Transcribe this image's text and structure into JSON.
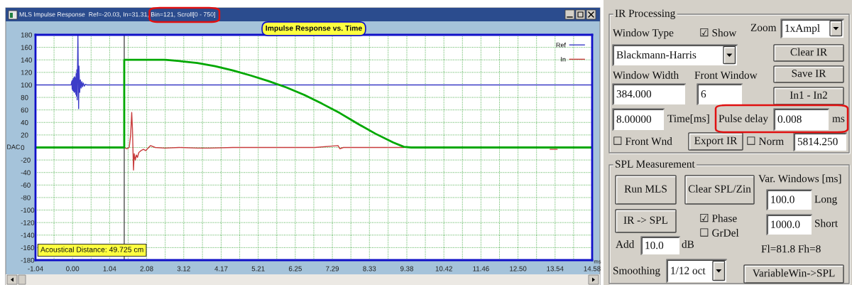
{
  "chart_data": [
    {
      "type": "line",
      "title": "Impulse Response vs. Time",
      "xlabel": "ms",
      "ylabel": "DAC",
      "annotations": [
        "MLS Impulse Response  Ref=-20.03, In=31.31, Bin=121, Scroll[0 - 750]",
        "Acoustical Distance: 49.725 cm"
      ],
      "xlim": [
        -1.04,
        14.58
      ],
      "ylim": [
        -180,
        180
      ],
      "xticks": [
        -1.04,
        {
          "value": -0.52,
          "label": null
        },
        {
          "value": 0,
          "label": "0.00"
        },
        {
          "value": 0.52,
          "label": null
        },
        1.04,
        {
          "value": 1.56,
          "label": null
        },
        2.08,
        {
          "value": 2.6,
          "label": null
        },
        3.12,
        {
          "value": 3.645,
          "label": null
        },
        4.17,
        {
          "value": 4.69,
          "label": null
        },
        5.21,
        {
          "value": 5.73,
          "label": null
        },
        6.25,
        {
          "value": 6.77,
          "label": null
        },
        7.29,
        {
          "value": 7.81,
          "label": null
        },
        8.33,
        {
          "value": 8.855,
          "label": null
        },
        9.38,
        {
          "value": 9.9,
          "label": null
        },
        10.42,
        {
          "value": 10.94,
          "label": null
        },
        11.46,
        {
          "value": 11.98,
          "label": null
        },
        {
          "value": 12.5,
          "label": "12.50"
        },
        {
          "value": 13.02,
          "label": null
        },
        13.54,
        {
          "value": 14.06,
          "label": null
        },
        14.58
      ],
      "yticks": [
        -180,
        -160,
        -140,
        -120,
        -100,
        -80,
        -60,
        -40,
        -20,
        0,
        20,
        40,
        60,
        80,
        100,
        120,
        140,
        160,
        180
      ],
      "grid": true,
      "legend": "top right",
      "ref_lines": [
        {
          "axis": "x",
          "value": 1.45,
          "color": "#202020"
        }
      ],
      "series": [
        {
          "name": "Ref",
          "color": "#3c3cc8",
          "x": [
            -1.04,
            -0.04,
            -0.02,
            -0.01,
            0.0,
            0.01,
            0.02,
            0.03,
            0.04,
            0.05,
            0.06,
            0.07,
            0.08,
            0.09,
            0.1,
            0.11,
            0.12,
            0.13,
            0.15,
            0.17,
            0.18,
            0.2,
            0.22,
            0.24,
            0.26,
            0.28,
            0.3,
            0.33,
            0.36,
            0.4,
            14.58
          ],
          "values": [
            100,
            100,
            106,
            93,
            108,
            91,
            110,
            90,
            112,
            88,
            113,
            89,
            111,
            85,
            118,
            82,
            124,
            76,
            180,
            62,
            130,
            88,
            108,
            95,
            105,
            97,
            103,
            98,
            101,
            100,
            100
          ]
        },
        {
          "name": "In",
          "color": "#c83c3c",
          "x": [
            1.45,
            1.53,
            1.59,
            1.63,
            1.66,
            1.68,
            1.7,
            1.71,
            1.73,
            1.76,
            1.79,
            1.82,
            1.86,
            1.92,
            1.99,
            2.05,
            2.19,
            2.32,
            2.59,
            2.99,
            3.52,
            3.85,
            4.5,
            5.3,
            6.0,
            6.8,
            7.45,
            7.5,
            7.6,
            8.3,
            9.3,
            9.4,
            13.4,
            13.6
          ],
          "values": [
            0,
            -2,
            0,
            20,
            56,
            30,
            -15,
            -36,
            -10,
            -20,
            -12,
            -16,
            -8,
            -5,
            -3,
            -5,
            3,
            0,
            -1,
            0,
            -1,
            -1,
            0,
            0,
            0,
            0,
            3,
            -2,
            0,
            0,
            0,
            null,
            -3,
            -3
          ]
        },
        {
          "color": "#00a800",
          "x": [
            -1.04,
            1.45,
            1.45,
            2.6,
            3.0,
            3.5,
            4.0,
            4.5,
            5.0,
            5.5,
            6.0,
            6.5,
            7.0,
            7.5,
            8.0,
            8.5,
            9.0,
            9.3,
            9.5,
            14.58
          ],
          "values": [
            0,
            0,
            140,
            140,
            138,
            135,
            130,
            123,
            115,
            106,
            96,
            84,
            70,
            55,
            38,
            22,
            8,
            1,
            0,
            0
          ]
        }
      ]
    },
    {
      "type": "other",
      "title": "IR Processing",
      "annotations": [
        "Window Type",
        "☑ Show",
        "Zoom",
        "1xAmpl",
        "Blackmann-Harris",
        "Clear IR",
        "Window Width",
        "Front Window",
        "Save IR",
        "384.000",
        "6",
        "In1 - In2",
        "8.00000",
        "Time[ms]",
        "Pulse delay",
        "0.008",
        "ms",
        "☐ Front Wnd",
        "Export IR",
        "☐ Norm",
        "5814.250"
      ]
    },
    {
      "type": "other",
      "title": "SPL Measurement",
      "annotations": [
        "Run MLS",
        "Clear SPL/Zin",
        "Var. Windows [ms]",
        "100.0",
        "Long",
        "IR -> SPL",
        "☑ Phase",
        "1000.0",
        "Short",
        "☐ GrDel",
        "Add",
        "10.0",
        "dB",
        "Fl=81.8 Fh=8",
        "Smoothing",
        "1/12 oct",
        "VariableWin->SPL"
      ]
    }
  ]
}
